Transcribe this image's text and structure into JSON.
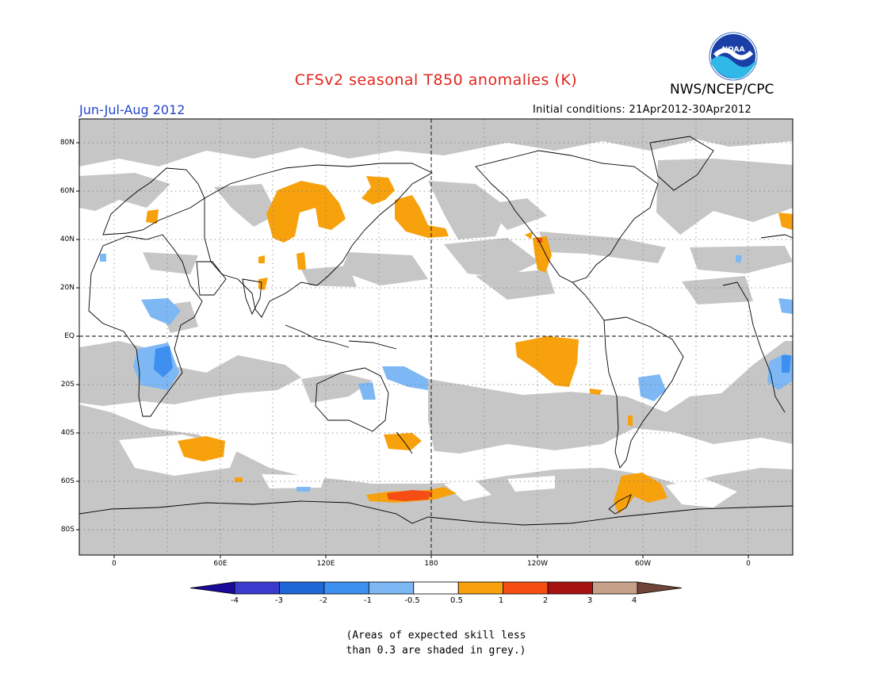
{
  "header": {
    "title": "CFSv2 seasonal T850 anomalies (K)",
    "agency": "NWS/NCEP/CPC",
    "period": "Jun-Jul-Aug 2012",
    "initial_conditions": "Initial conditions: 21Apr2012-30Apr2012"
  },
  "logo": {
    "text": "NOAA"
  },
  "map": {
    "lat_labels": [
      "80N",
      "60N",
      "40N",
      "20N",
      "EQ",
      "20S",
      "40S",
      "60S",
      "80S"
    ],
    "lon_labels": [
      "0",
      "60E",
      "120E",
      "180",
      "120W",
      "60W",
      "0"
    ]
  },
  "colorbar": {
    "labels": [
      "-4",
      "-3",
      "-2",
      "-1",
      "-0.5",
      "0.5",
      "1",
      "2",
      "3",
      "4"
    ],
    "colors": [
      "#1a0a9a",
      "#3a3acc",
      "#1f66d6",
      "#3d8ff0",
      "#7db8f5",
      "#ffffff",
      "#f7a10d",
      "#f54d12",
      "#a5120f",
      "#c7a08a",
      "#6e4536"
    ]
  },
  "legend_colors": {
    "low_skill": "#c6c6c6",
    "warm_weak": "#f7a10d",
    "warm_strong": "#f54d12",
    "cool_weak": "#7db8f5",
    "cool_mid": "#3d8ff0"
  },
  "note": {
    "line1": "(Areas of expected skill less",
    "line2": "than 0.3 are shaded in grey.)"
  }
}
